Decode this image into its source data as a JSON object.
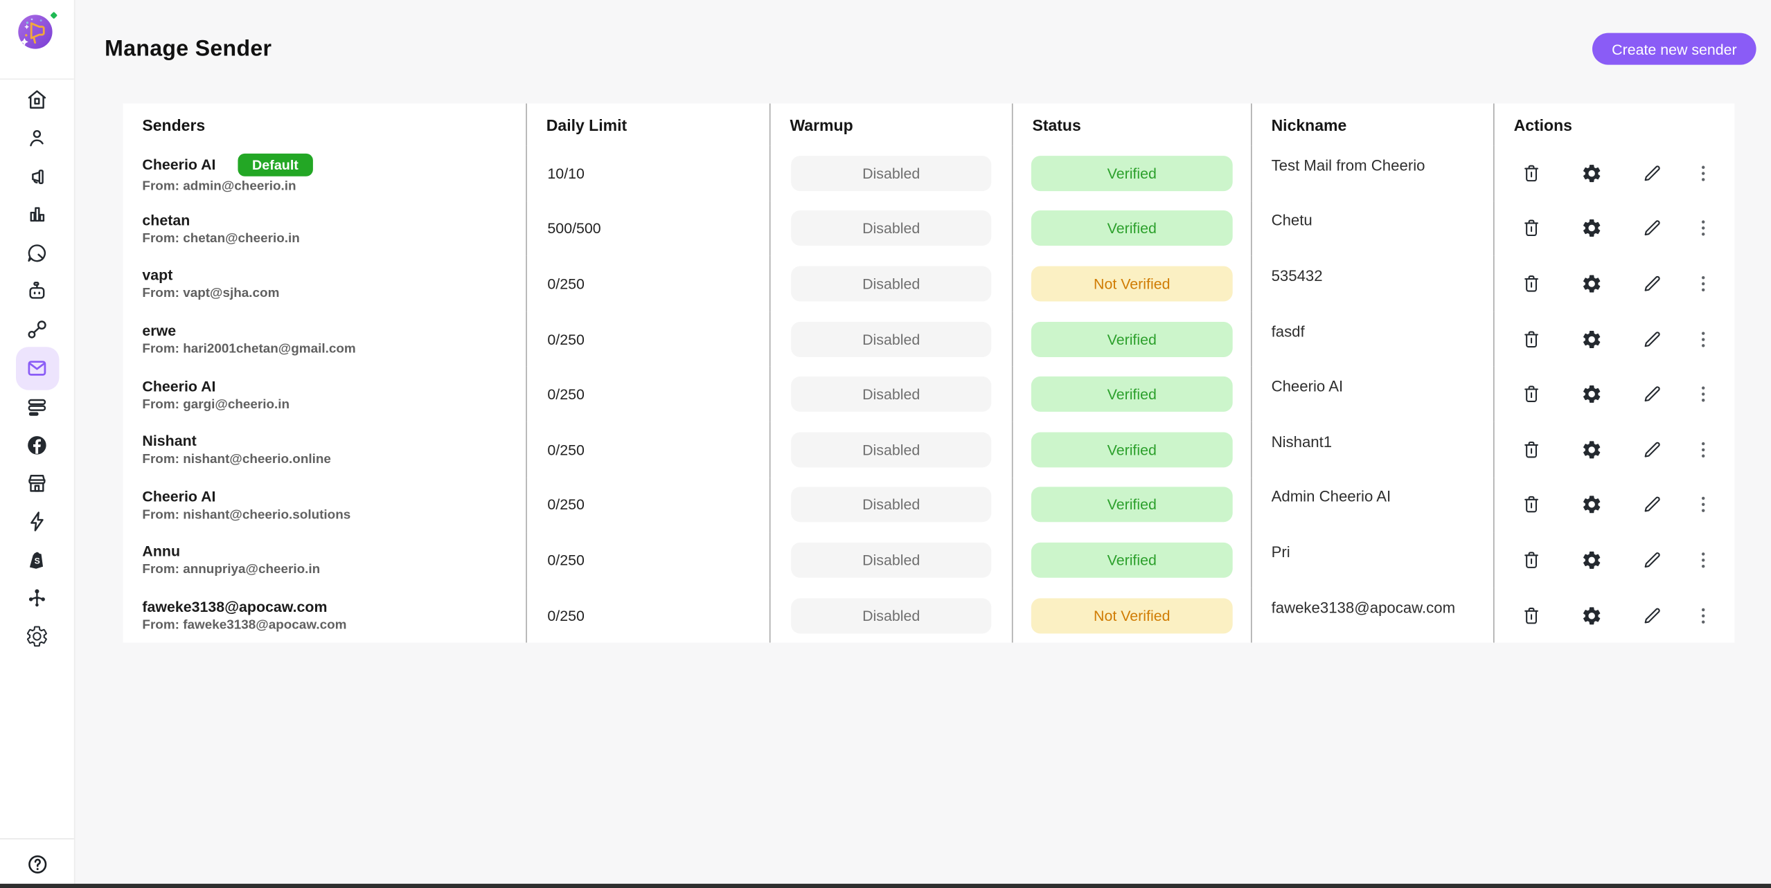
{
  "app": {
    "title": "Manage Sender",
    "create_button_label": "Create new sender"
  },
  "sidebar": {
    "logo_icon": "cheerio-megaphone-logo",
    "active_icon": "email-icon",
    "items": [
      {
        "icon": "home-icon"
      },
      {
        "icon": "contacts-icon"
      },
      {
        "icon": "announcement-icon"
      },
      {
        "icon": "analytics-icon"
      },
      {
        "icon": "chat-icon"
      },
      {
        "icon": "chatbot-icon"
      },
      {
        "icon": "link-icon"
      },
      {
        "icon": "email-icon"
      },
      {
        "icon": "templates-icon"
      },
      {
        "icon": "facebook-icon"
      },
      {
        "icon": "storefront-icon"
      },
      {
        "icon": "automation-icon"
      },
      {
        "icon": "shopify-icon"
      },
      {
        "icon": "integrations-icon"
      },
      {
        "icon": "settings-icon"
      }
    ],
    "help_icon": "help-icon"
  },
  "table": {
    "headers": [
      "Senders",
      "Daily Limit",
      "Warmup",
      "Status",
      "Nickname",
      "Actions"
    ],
    "action_icons": [
      "trash-icon",
      "gear-icon",
      "pencil-icon",
      "more-options-icon"
    ],
    "rows": [
      {
        "name": "Cheerio AI",
        "default_badge": "Default",
        "from": "From: admin@cheerio.in",
        "daily_limit": "10/10",
        "warmup": "Disabled",
        "status": "Verified",
        "status_type": "verified",
        "nickname": "Test Mail from Cheerio"
      },
      {
        "name": "chetan",
        "from": "From: chetan@cheerio.in",
        "daily_limit": "500/500",
        "warmup": "Disabled",
        "status": "Verified",
        "status_type": "verified",
        "nickname": "Chetu"
      },
      {
        "name": "vapt",
        "from": "From: vapt@sjha.com",
        "daily_limit": "0/250",
        "warmup": "Disabled",
        "status": "Not Verified",
        "status_type": "not_verified",
        "nickname": "535432"
      },
      {
        "name": "erwe",
        "from": "From: hari2001chetan@gmail.com",
        "daily_limit": "0/250",
        "warmup": "Disabled",
        "status": "Verified",
        "status_type": "verified",
        "nickname": "fasdf"
      },
      {
        "name": "Cheerio AI",
        "from": "From: gargi@cheerio.in",
        "daily_limit": "0/250",
        "warmup": "Disabled",
        "status": "Verified",
        "status_type": "verified",
        "nickname": "Cheerio AI"
      },
      {
        "name": "Nishant",
        "from": "From: nishant@cheerio.online",
        "daily_limit": "0/250",
        "warmup": "Disabled",
        "status": "Verified",
        "status_type": "verified",
        "nickname": "Nishant1"
      },
      {
        "name": "Cheerio AI",
        "from": "From: nishant@cheerio.solutions",
        "daily_limit": "0/250",
        "warmup": "Disabled",
        "status": "Verified",
        "status_type": "verified",
        "nickname": "Admin Cheerio AI"
      },
      {
        "name": "Annu",
        "from": "From: annupriya@cheerio.in",
        "daily_limit": "0/250",
        "warmup": "Disabled",
        "status": "Verified",
        "status_type": "verified",
        "nickname": "Pri"
      },
      {
        "name": "faweke3138@apocaw.com",
        "from": "From: faweke3138@apocaw.com",
        "daily_limit": "0/250",
        "warmup": "Disabled",
        "status": "Not Verified",
        "status_type": "not_verified",
        "nickname": "faweke3138@apocaw.com"
      }
    ]
  },
  "colors": {
    "accent_purple": "#8a5cf6",
    "active_nav_bg": "#ede4fd",
    "default_badge_green": "#23a725",
    "verified_bg": "#ccf5cb",
    "verified_text": "#2ca02c",
    "not_verified_bg": "#fbf0c3",
    "not_verified_text": "#d07c04",
    "warmup_disabled_bg": "#f5f5f5",
    "warmup_disabled_text": "#6f6f6f"
  }
}
